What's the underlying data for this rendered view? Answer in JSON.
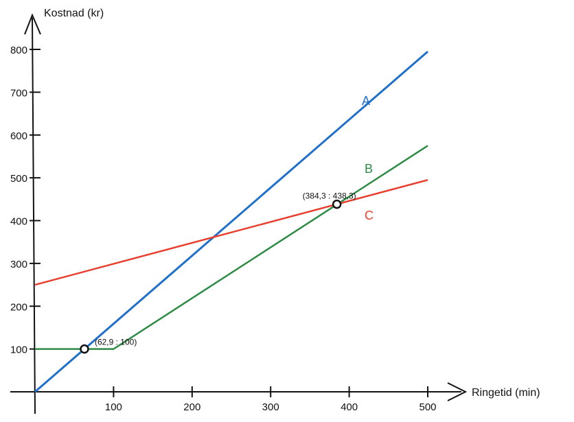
{
  "chart_data": {
    "type": "line",
    "xlabel": "Ringetid (min)",
    "ylabel": "Kostnad (kr)",
    "xlim": [
      0,
      500
    ],
    "ylim": [
      0,
      800
    ],
    "xticks": [
      100,
      200,
      300,
      400,
      500
    ],
    "yticks": [
      100,
      200,
      300,
      400,
      500,
      600,
      700,
      800
    ],
    "grid": false,
    "series": [
      {
        "name": "A",
        "color": "#1f6fc9",
        "x": [
          0,
          500
        ],
        "y": [
          0,
          795
        ]
      },
      {
        "name": "B",
        "color": "#2e8b45",
        "x": [
          0,
          100,
          500
        ],
        "y": [
          100,
          100,
          575
        ]
      },
      {
        "name": "C",
        "color": "#e8402f",
        "x": [
          0,
          500
        ],
        "y": [
          250,
          495
        ]
      }
    ],
    "annotations": [
      {
        "label": "(62,9 : 100)",
        "x": 62.9,
        "y": 100
      },
      {
        "label": "(384,3 : 438,3)",
        "x": 384.3,
        "y": 438.3
      }
    ]
  }
}
